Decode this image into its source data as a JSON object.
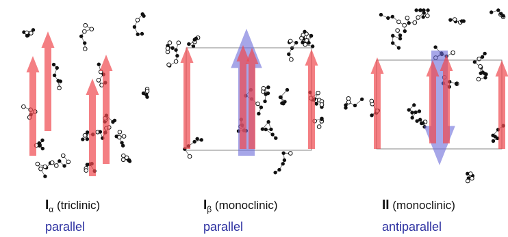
{
  "panels": [
    {
      "symbol": "I",
      "subscript": "α",
      "system": "(triclinic)",
      "packing": "parallel"
    },
    {
      "symbol": "I",
      "subscript": "β",
      "system": "(monoclinic)",
      "packing": "parallel"
    },
    {
      "symbol": "II",
      "system": "(monoclinic)",
      "packing": "antiparallel"
    }
  ]
}
